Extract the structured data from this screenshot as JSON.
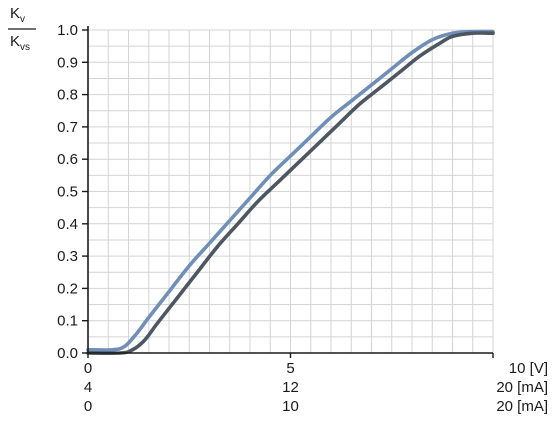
{
  "chart_data": {
    "type": "line",
    "ylabel": {
      "numerator": "K",
      "numerator_sub": "v",
      "denominator": "K",
      "denominator_sub": "vs"
    },
    "xlim": [
      0,
      10
    ],
    "ylim": [
      0,
      1.0
    ],
    "grid": true,
    "yticks": [
      "0.0",
      "0.1",
      "0.2",
      "0.3",
      "0.4",
      "0.5",
      "0.6",
      "0.7",
      "0.8",
      "0.9",
      "1.0"
    ],
    "x_axis_rows": [
      {
        "left": "0",
        "mid": "5",
        "right": "10 [V]"
      },
      {
        "left": "4",
        "mid": "12",
        "right": "20 [mA]"
      },
      {
        "left": "0",
        "mid": "10",
        "right": "20 [mA]"
      }
    ],
    "series": [
      {
        "color": "#6f8fb8",
        "x": [
          0,
          0.6,
          0.9,
          1.2,
          1.5,
          2.0,
          2.5,
          3.0,
          3.5,
          4.0,
          4.5,
          5.0,
          5.5,
          6.0,
          6.5,
          7.0,
          7.5,
          8.0,
          8.5,
          9.0,
          9.5,
          10
        ],
        "y": [
          0.01,
          0.01,
          0.02,
          0.06,
          0.11,
          0.19,
          0.27,
          0.34,
          0.41,
          0.48,
          0.55,
          0.61,
          0.67,
          0.73,
          0.78,
          0.83,
          0.88,
          0.93,
          0.97,
          0.99,
          0.995,
          0.995
        ]
      },
      {
        "color": "#4d5661",
        "x": [
          0,
          0.8,
          1.1,
          1.4,
          1.7,
          2.2,
          2.7,
          3.2,
          3.7,
          4.2,
          4.7,
          5.2,
          5.7,
          6.2,
          6.7,
          7.2,
          7.7,
          8.2,
          8.7,
          9.0,
          9.5,
          10
        ],
        "y": [
          0.0,
          0.0,
          0.01,
          0.04,
          0.09,
          0.17,
          0.25,
          0.33,
          0.4,
          0.47,
          0.53,
          0.59,
          0.65,
          0.71,
          0.77,
          0.82,
          0.87,
          0.92,
          0.96,
          0.98,
          0.99,
          0.99
        ]
      }
    ]
  }
}
